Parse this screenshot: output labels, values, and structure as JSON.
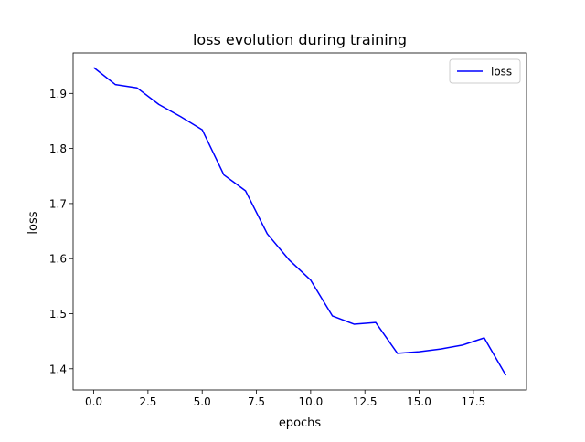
{
  "chart_data": {
    "type": "line",
    "title": "loss evolution during training",
    "xlabel": "epochs",
    "ylabel": "loss",
    "xlim": [
      -0.95,
      19.95
    ],
    "ylim": [
      1.3615,
      1.9735
    ],
    "x_ticks": [
      0.0,
      2.5,
      5.0,
      7.5,
      10.0,
      12.5,
      15.0,
      17.5
    ],
    "x_tick_labels": [
      "0.0",
      "2.5",
      "5.0",
      "7.5",
      "10.0",
      "12.5",
      "15.0",
      "17.5"
    ],
    "y_ticks": [
      1.4,
      1.5,
      1.6,
      1.7,
      1.8,
      1.9
    ],
    "y_tick_labels": [
      "1.4",
      "1.5",
      "1.6",
      "1.7",
      "1.8",
      "1.9"
    ],
    "grid": false,
    "legend_position": "top-right",
    "series": [
      {
        "name": "loss",
        "color": "#0000ff",
        "x": [
          0,
          1,
          2,
          3,
          4,
          5,
          6,
          7,
          8,
          9,
          10,
          11,
          12,
          13,
          14,
          15,
          16,
          17,
          18,
          19
        ],
        "values": [
          1.947,
          1.916,
          1.91,
          1.88,
          1.858,
          1.834,
          1.752,
          1.723,
          1.645,
          1.598,
          1.561,
          1.496,
          1.481,
          1.484,
          1.428,
          1.431,
          1.436,
          1.443,
          1.456,
          1.388
        ]
      }
    ]
  }
}
